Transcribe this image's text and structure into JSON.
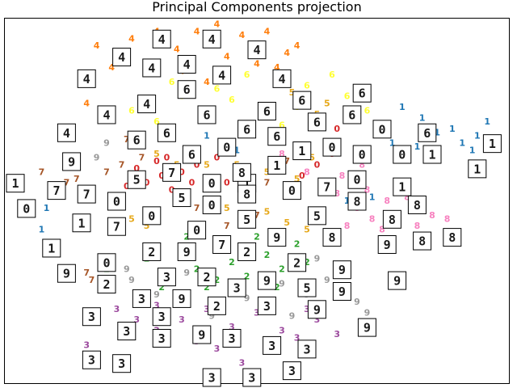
{
  "chart_data": {
    "type": "scatter",
    "title": "Principal Components projection",
    "xlabel": "",
    "ylabel": "",
    "grid": false,
    "axes_visible": false,
    "xlim": [
      0,
      100
    ],
    "ylim": [
      0,
      100
    ],
    "class_colors": {
      "0": "#d62728",
      "1": "#1f77b4",
      "2": "#2ca02c",
      "3": "#9c4a9e",
      "4": "#ff7f0e",
      "5": "#e6a81a",
      "6": "#ffff33",
      "7": "#a65628",
      "8": "#f781bf",
      "9": "#999999"
    },
    "series": [
      {
        "digit": "0",
        "points": [
          [
            28,
            55
          ],
          [
            31,
            57
          ],
          [
            33,
            53
          ],
          [
            35,
            58
          ],
          [
            30,
            61
          ],
          [
            36,
            52
          ],
          [
            40,
            56
          ],
          [
            38,
            60
          ],
          [
            62,
            60
          ],
          [
            65,
            63
          ],
          [
            70,
            62
          ],
          [
            26,
            59
          ],
          [
            44,
            55
          ],
          [
            47,
            59
          ],
          [
            42,
            62
          ],
          [
            66,
            70
          ],
          [
            59,
            57
          ],
          [
            24,
            54
          ],
          [
            32,
            62
          ],
          [
            37,
            55
          ]
        ]
      },
      {
        "digit": "1",
        "points": [
          [
            79,
            76
          ],
          [
            83,
            73
          ],
          [
            86,
            69
          ],
          [
            89,
            70
          ],
          [
            91,
            66
          ],
          [
            94,
            68
          ],
          [
            96,
            72
          ],
          [
            93,
            64
          ],
          [
            70,
            56
          ],
          [
            73,
            51
          ],
          [
            68,
            50
          ],
          [
            8,
            48
          ],
          [
            7,
            42
          ],
          [
            40,
            68
          ],
          [
            46,
            64
          ],
          [
            36,
            64
          ],
          [
            82,
            65
          ],
          [
            77,
            66
          ],
          [
            74,
            71
          ]
        ]
      },
      {
        "digit": "2",
        "points": [
          [
            28,
            34
          ],
          [
            32,
            30
          ],
          [
            35,
            36
          ],
          [
            38,
            31
          ],
          [
            42,
            28
          ],
          [
            45,
            33
          ],
          [
            48,
            29
          ],
          [
            52,
            35
          ],
          [
            55,
            31
          ],
          [
            58,
            38
          ],
          [
            40,
            26
          ],
          [
            36,
            40
          ],
          [
            50,
            40
          ],
          [
            44,
            37
          ],
          [
            20,
            31
          ],
          [
            54,
            26
          ],
          [
            60,
            33
          ],
          [
            31,
            26
          ]
        ]
      },
      {
        "digit": "3",
        "points": [
          [
            22,
            20
          ],
          [
            26,
            17
          ],
          [
            30,
            14
          ],
          [
            35,
            17
          ],
          [
            40,
            20
          ],
          [
            45,
            15
          ],
          [
            50,
            19
          ],
          [
            55,
            14
          ],
          [
            58,
            12
          ],
          [
            62,
            17
          ],
          [
            66,
            13
          ],
          [
            30,
            21
          ],
          [
            38,
            11
          ],
          [
            16,
            10
          ],
          [
            42,
            9
          ],
          [
            53,
            10
          ],
          [
            47,
            5
          ],
          [
            60,
            20
          ]
        ]
      },
      {
        "digit": "4",
        "points": [
          [
            18,
            93
          ],
          [
            22,
            91
          ],
          [
            25,
            95
          ],
          [
            30,
            97
          ],
          [
            34,
            92
          ],
          [
            38,
            97
          ],
          [
            42,
            99
          ],
          [
            47,
            96
          ],
          [
            52,
            97
          ],
          [
            56,
            91
          ],
          [
            58,
            93
          ],
          [
            21,
            87
          ],
          [
            28,
            88
          ],
          [
            35,
            86
          ],
          [
            44,
            90
          ],
          [
            50,
            88
          ],
          [
            16,
            77
          ],
          [
            40,
            83
          ],
          [
            54,
            87
          ]
        ]
      },
      {
        "digit": "5",
        "points": [
          [
            30,
            63
          ],
          [
            34,
            60
          ],
          [
            40,
            60
          ],
          [
            46,
            60
          ],
          [
            52,
            58
          ],
          [
            58,
            56
          ],
          [
            61,
            62
          ],
          [
            25,
            45
          ],
          [
            28,
            43
          ],
          [
            36,
            50
          ],
          [
            44,
            48
          ],
          [
            52,
            47
          ],
          [
            56,
            44
          ],
          [
            60,
            42
          ],
          [
            62,
            74
          ],
          [
            64,
            77
          ],
          [
            57,
            80
          ],
          [
            23,
            50
          ]
        ]
      },
      {
        "digit": "6",
        "points": [
          [
            25,
            75
          ],
          [
            30,
            72
          ],
          [
            35,
            79
          ],
          [
            40,
            74
          ],
          [
            45,
            78
          ],
          [
            52,
            75
          ],
          [
            55,
            71
          ],
          [
            58,
            76
          ],
          [
            62,
            73
          ],
          [
            68,
            79
          ],
          [
            72,
            75
          ],
          [
            33,
            83
          ],
          [
            42,
            81
          ],
          [
            48,
            85
          ],
          [
            60,
            82
          ],
          [
            65,
            85
          ],
          [
            70,
            80
          ]
        ]
      },
      {
        "digit": "7",
        "points": [
          [
            7,
            58
          ],
          [
            12,
            55
          ],
          [
            16,
            51
          ],
          [
            20,
            58
          ],
          [
            23,
            60
          ],
          [
            27,
            62
          ],
          [
            34,
            51
          ],
          [
            38,
            48
          ],
          [
            44,
            43
          ],
          [
            50,
            46
          ],
          [
            52,
            55
          ],
          [
            56,
            61
          ],
          [
            16,
            30
          ],
          [
            17,
            28
          ],
          [
            14,
            56
          ],
          [
            24,
            67
          ],
          [
            58,
            54
          ]
        ]
      },
      {
        "digit": "8",
        "points": [
          [
            55,
            63
          ],
          [
            60,
            58
          ],
          [
            64,
            55
          ],
          [
            66,
            52
          ],
          [
            70,
            48
          ],
          [
            73,
            45
          ],
          [
            76,
            50
          ],
          [
            78,
            46
          ],
          [
            82,
            43
          ],
          [
            85,
            46
          ],
          [
            88,
            45
          ],
          [
            67,
            57
          ],
          [
            72,
            53
          ],
          [
            75,
            42
          ],
          [
            68,
            43
          ],
          [
            80,
            51
          ],
          [
            62,
            47
          ],
          [
            71,
            60
          ]
        ]
      },
      {
        "digit": "9",
        "points": [
          [
            18,
            62
          ],
          [
            20,
            66
          ],
          [
            25,
            28
          ],
          [
            30,
            24
          ],
          [
            34,
            22
          ],
          [
            41,
            18
          ],
          [
            48,
            23
          ],
          [
            55,
            27
          ],
          [
            60,
            24
          ],
          [
            64,
            28
          ],
          [
            66,
            32
          ],
          [
            70,
            22
          ],
          [
            72,
            19
          ],
          [
            44,
            13
          ],
          [
            57,
            18
          ],
          [
            24,
            31
          ],
          [
            36,
            30
          ],
          [
            62,
            34
          ]
        ]
      }
    ],
    "thumbnails": [
      {
        "digit": "4",
        "x": 31,
        "y": 95
      },
      {
        "digit": "4",
        "x": 23,
        "y": 90
      },
      {
        "digit": "4",
        "x": 41,
        "y": 95
      },
      {
        "digit": "4",
        "x": 50,
        "y": 92
      },
      {
        "digit": "4",
        "x": 16,
        "y": 84
      },
      {
        "digit": "4",
        "x": 29,
        "y": 87
      },
      {
        "digit": "4",
        "x": 36,
        "y": 88
      },
      {
        "digit": "4",
        "x": 43,
        "y": 85
      },
      {
        "digit": "4",
        "x": 55,
        "y": 84
      },
      {
        "digit": "4",
        "x": 28,
        "y": 77
      },
      {
        "digit": "4",
        "x": 20,
        "y": 74
      },
      {
        "digit": "4",
        "x": 12,
        "y": 69
      },
      {
        "digit": "6",
        "x": 36,
        "y": 81
      },
      {
        "digit": "6",
        "x": 40,
        "y": 74
      },
      {
        "digit": "6",
        "x": 32,
        "y": 69
      },
      {
        "digit": "6",
        "x": 26,
        "y": 67
      },
      {
        "digit": "6",
        "x": 52,
        "y": 75
      },
      {
        "digit": "6",
        "x": 54,
        "y": 68
      },
      {
        "digit": "6",
        "x": 59,
        "y": 78
      },
      {
        "digit": "6",
        "x": 62,
        "y": 72
      },
      {
        "digit": "6",
        "x": 71,
        "y": 80
      },
      {
        "digit": "6",
        "x": 69,
        "y": 74
      },
      {
        "digit": "6",
        "x": 37,
        "y": 63
      },
      {
        "digit": "6",
        "x": 84,
        "y": 69
      },
      {
        "digit": "6",
        "x": 48,
        "y": 70
      },
      {
        "digit": "1",
        "x": 97,
        "y": 66
      },
      {
        "digit": "1",
        "x": 94,
        "y": 59
      },
      {
        "digit": "1",
        "x": 85,
        "y": 63
      },
      {
        "digit": "1",
        "x": 59,
        "y": 64
      },
      {
        "digit": "1",
        "x": 54,
        "y": 60
      },
      {
        "digit": "1",
        "x": 48,
        "y": 55
      },
      {
        "digit": "1",
        "x": 79,
        "y": 54
      },
      {
        "digit": "1",
        "x": 1,
        "y": 55
      },
      {
        "digit": "1",
        "x": 15,
        "y": 44
      },
      {
        "digit": "1",
        "x": 9,
        "y": 37
      },
      {
        "digit": "0",
        "x": 44,
        "y": 65
      },
      {
        "digit": "0",
        "x": 65,
        "y": 65
      },
      {
        "digit": "0",
        "x": 71,
        "y": 63
      },
      {
        "digit": "0",
        "x": 75,
        "y": 70
      },
      {
        "digit": "0",
        "x": 79,
        "y": 63
      },
      {
        "digit": "0",
        "x": 70,
        "y": 56
      },
      {
        "digit": "0",
        "x": 41,
        "y": 55
      },
      {
        "digit": "0",
        "x": 57,
        "y": 53
      },
      {
        "digit": "0",
        "x": 22,
        "y": 50
      },
      {
        "digit": "0",
        "x": 29,
        "y": 46
      },
      {
        "digit": "0",
        "x": 41,
        "y": 49
      },
      {
        "digit": "0",
        "x": 4,
        "y": 48
      },
      {
        "digit": "0",
        "x": 38,
        "y": 42
      },
      {
        "digit": "0",
        "x": 20,
        "y": 33
      },
      {
        "digit": "7",
        "x": 33,
        "y": 58
      },
      {
        "digit": "7",
        "x": 10,
        "y": 53
      },
      {
        "digit": "7",
        "x": 16,
        "y": 52
      },
      {
        "digit": "7",
        "x": 64,
        "y": 54
      },
      {
        "digit": "7",
        "x": 22,
        "y": 43
      },
      {
        "digit": "7",
        "x": 43,
        "y": 38
      },
      {
        "digit": "8",
        "x": 47,
        "y": 58
      },
      {
        "digit": "8",
        "x": 70,
        "y": 50
      },
      {
        "digit": "8",
        "x": 82,
        "y": 49
      },
      {
        "digit": "8",
        "x": 77,
        "y": 45
      },
      {
        "digit": "8",
        "x": 65,
        "y": 40
      },
      {
        "digit": "8",
        "x": 83,
        "y": 39
      },
      {
        "digit": "8",
        "x": 89,
        "y": 40
      },
      {
        "digit": "8",
        "x": 48,
        "y": 52
      },
      {
        "digit": "5",
        "x": 26,
        "y": 56
      },
      {
        "digit": "5",
        "x": 35,
        "y": 51
      },
      {
        "digit": "5",
        "x": 48,
        "y": 45
      },
      {
        "digit": "5",
        "x": 62,
        "y": 46
      },
      {
        "digit": "5",
        "x": 60,
        "y": 26
      },
      {
        "digit": "9",
        "x": 13,
        "y": 61
      },
      {
        "digit": "9",
        "x": 54,
        "y": 40
      },
      {
        "digit": "9",
        "x": 36,
        "y": 36
      },
      {
        "digit": "9",
        "x": 67,
        "y": 31
      },
      {
        "digit": "9",
        "x": 67,
        "y": 25
      },
      {
        "digit": "9",
        "x": 76,
        "y": 38
      },
      {
        "digit": "9",
        "x": 78,
        "y": 28
      },
      {
        "digit": "9",
        "x": 52,
        "y": 28
      },
      {
        "digit": "9",
        "x": 35,
        "y": 23
      },
      {
        "digit": "9",
        "x": 12,
        "y": 30
      },
      {
        "digit": "9",
        "x": 62,
        "y": 20
      },
      {
        "digit": "9",
        "x": 72,
        "y": 15
      },
      {
        "digit": "9",
        "x": 39,
        "y": 13
      },
      {
        "digit": "2",
        "x": 29,
        "y": 36
      },
      {
        "digit": "2",
        "x": 40,
        "y": 29
      },
      {
        "digit": "2",
        "x": 48,
        "y": 36
      },
      {
        "digit": "2",
        "x": 58,
        "y": 33
      },
      {
        "digit": "2",
        "x": 42,
        "y": 21
      },
      {
        "digit": "2",
        "x": 20,
        "y": 27
      },
      {
        "digit": "3",
        "x": 32,
        "y": 29
      },
      {
        "digit": "3",
        "x": 46,
        "y": 26
      },
      {
        "digit": "3",
        "x": 27,
        "y": 23
      },
      {
        "digit": "3",
        "x": 52,
        "y": 21
      },
      {
        "digit": "3",
        "x": 31,
        "y": 18
      },
      {
        "digit": "3",
        "x": 17,
        "y": 18
      },
      {
        "digit": "3",
        "x": 24,
        "y": 14
      },
      {
        "digit": "3",
        "x": 31,
        "y": 12
      },
      {
        "digit": "3",
        "x": 45,
        "y": 12
      },
      {
        "digit": "3",
        "x": 53,
        "y": 10
      },
      {
        "digit": "3",
        "x": 60,
        "y": 9
      },
      {
        "digit": "3",
        "x": 17,
        "y": 6
      },
      {
        "digit": "3",
        "x": 23,
        "y": 5
      },
      {
        "digit": "3",
        "x": 57,
        "y": 3
      },
      {
        "digit": "3",
        "x": 41,
        "y": 0.5
      },
      {
        "digit": "3",
        "x": 49,
        "y": 0
      }
    ]
  }
}
